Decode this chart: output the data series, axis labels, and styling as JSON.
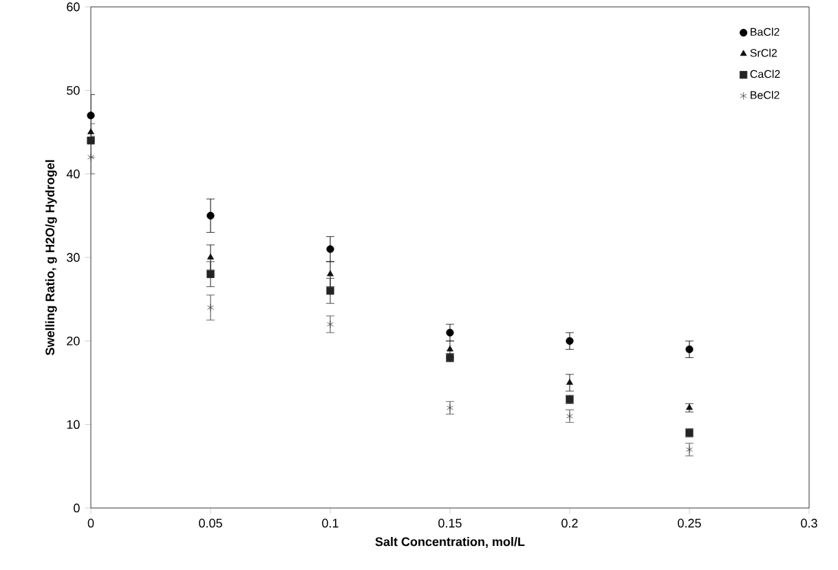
{
  "chart_data": {
    "type": "scatter",
    "xlabel": "Salt Concentration, mol/L",
    "ylabel": "Swelling Ratio, g H2O/g Hydrogel",
    "x": [
      0,
      0.05,
      0.1,
      0.15,
      0.2,
      0.25
    ],
    "xlim": [
      0,
      0.3
    ],
    "xticks": [
      0,
      0.05,
      0.1,
      0.15,
      0.2,
      0.25,
      0.3
    ],
    "ylim": [
      0,
      60
    ],
    "yticks": [
      0,
      10,
      20,
      30,
      40,
      50,
      60
    ],
    "legend": "top right",
    "grid": false,
    "series": [
      {
        "name": "BaCl2",
        "color": "#000000",
        "marker": "circle",
        "values": [
          47,
          35,
          31,
          21,
          20,
          19
        ],
        "errors": [
          2.5,
          2,
          1.5,
          1,
          1,
          1
        ]
      },
      {
        "name": "SrCl2",
        "color": "#121212",
        "marker": "triangle",
        "values": [
          45,
          30,
          28,
          19,
          15,
          12
        ],
        "errors": [
          null,
          1.5,
          1.5,
          1,
          1,
          0.5
        ]
      },
      {
        "name": "CaCl2",
        "color": "#242424",
        "marker": "square",
        "values": [
          44,
          28,
          26,
          18,
          13,
          9
        ],
        "errors": [
          2,
          1.5,
          1.5,
          0.5,
          0.5,
          0.5
        ]
      },
      {
        "name": "BeCl2",
        "color": "#404040",
        "marker": "cross",
        "values": [
          42,
          24,
          22,
          12,
          11,
          7
        ],
        "errors": [
          2,
          1.5,
          1,
          0.75,
          0.75,
          0.75
        ]
      }
    ]
  }
}
